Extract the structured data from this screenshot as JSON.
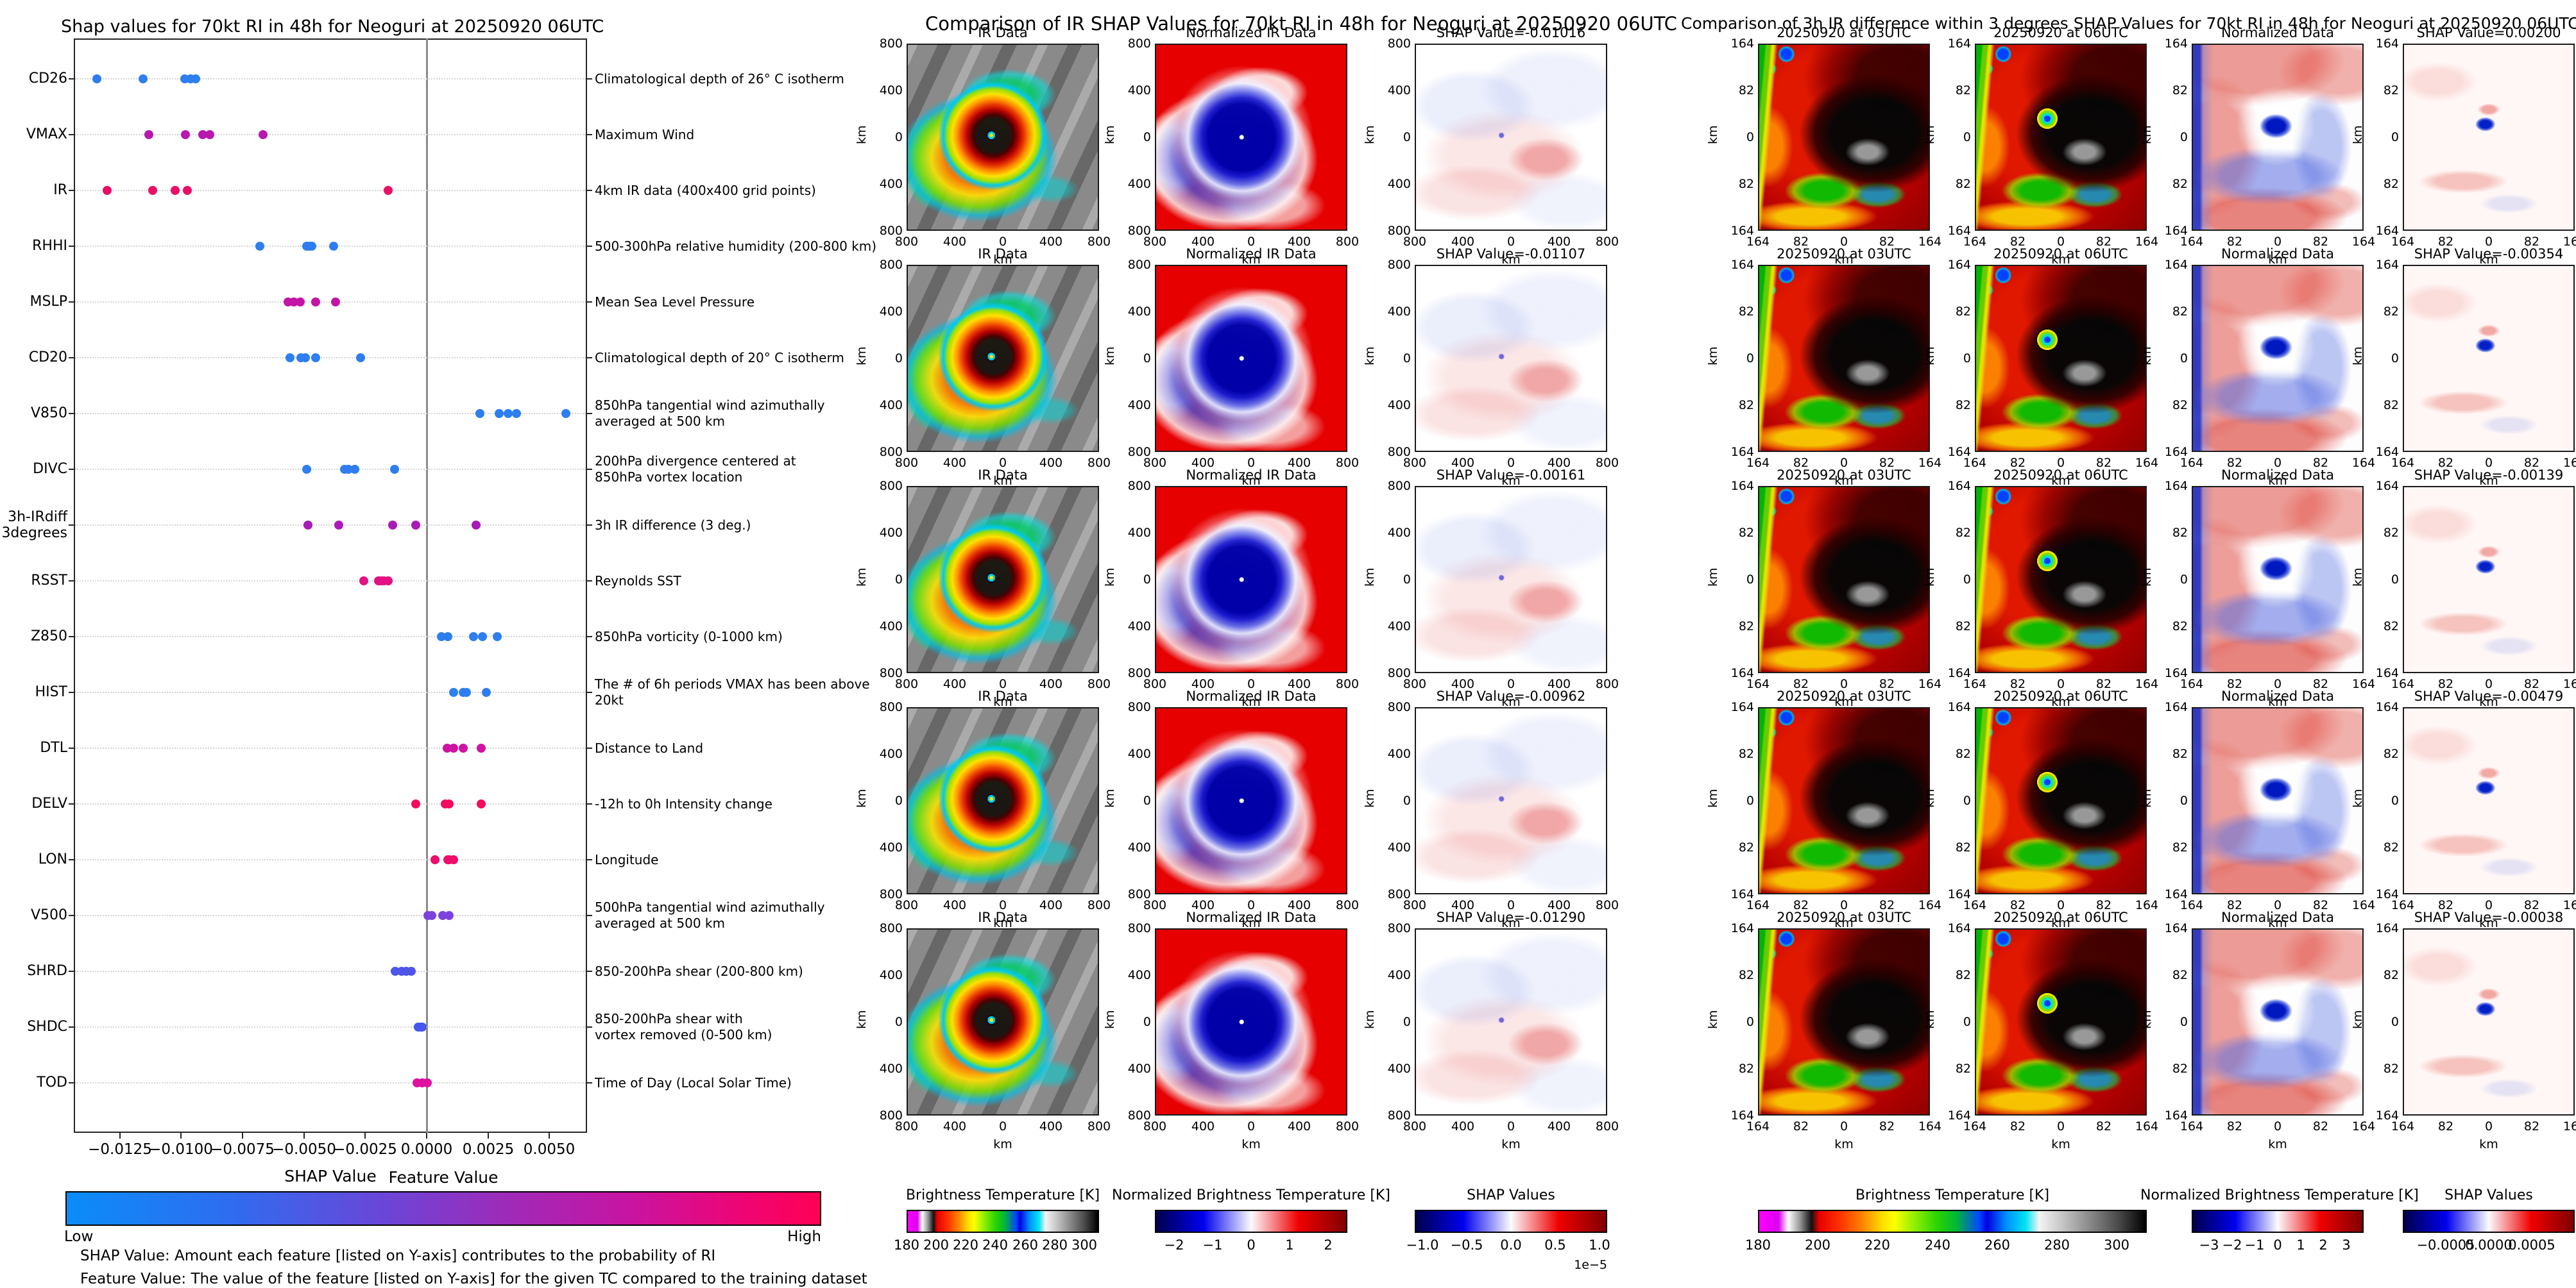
{
  "chart_data": [
    {
      "type": "scatter",
      "title": "Shap values for 70kt RI in 48h for Neoguri at 20250920 06UTC",
      "xlabel": "SHAP Value",
      "xlim": [
        -0.01438,
        0.00654
      ],
      "x_ticks": [
        -0.0125,
        -0.01,
        -0.0075,
        -0.005,
        -0.0025,
        0.0,
        0.0025,
        0.005
      ],
      "x_tick_labels": [
        "−0.0125",
        "−0.0100",
        "−0.0075",
        "−0.0050",
        "−0.0025",
        "0.0000",
        "0.0025",
        "0.0050"
      ],
      "grid": "dotted-horizontal",
      "zero_line": true,
      "colorbar": {
        "title": "Feature Value",
        "low_label": "Low",
        "high_label": "High",
        "low_color": "#0a8df8",
        "high_color": "#ff0154"
      },
      "notes": [
        "SHAP Value: Amount each feature [listed on Y-axis] contributes to the probability of RI",
        "Feature Value: The value of the feature [listed on Y-axis] for the given TC compared to the training dataset"
      ],
      "features": [
        {
          "abbr": "CD26",
          "description": "Climatological depth of 26° C isotherm",
          "dot_color": "#2e7ef0",
          "shap_values": [
            -0.01344,
            -0.01156,
            -0.00985,
            -0.00962,
            -0.00941
          ]
        },
        {
          "abbr": "VMAX",
          "description": "Maximum Wind",
          "dot_color": "#b817b0",
          "shap_values": [
            -0.01132,
            -0.00983,
            -0.00913,
            -0.00884,
            -0.00667
          ]
        },
        {
          "abbr": "IR",
          "description": "4km IR data (400x400 grid points)",
          "dot_color": "#e90f66",
          "shap_values": [
            -0.01302,
            -0.01117,
            -0.01025,
            -0.00975,
            -0.00157
          ]
        },
        {
          "abbr": "RHHI",
          "description": "500-300hPa relative humidity (200-800 km)",
          "dot_color": "#2e7ef0",
          "shap_values": [
            -0.0068,
            -0.00489,
            -0.00479,
            -0.00468,
            -0.00379
          ]
        },
        {
          "abbr": "MSLP",
          "description": "Mean Sea Level Pressure",
          "dot_color": "#c315a6",
          "shap_values": [
            -0.00565,
            -0.00541,
            -0.00515,
            -0.00452,
            -0.00371
          ]
        },
        {
          "abbr": "CD20",
          "description": "Climatological depth of 20° C isotherm",
          "dot_color": "#2e7ef0",
          "shap_values": [
            -0.00557,
            -0.00512,
            -0.00494,
            -0.00452,
            -0.00269
          ]
        },
        {
          "abbr": "V850",
          "description": "850hPa tangential wind azimuthally\naveraged at 500 km",
          "dot_color": "#2e7ef0",
          "shap_values": [
            0.00217,
            0.00295,
            0.00332,
            0.00366,
            0.00567
          ]
        },
        {
          "abbr": "DIVC",
          "description": "200hPa divergence centered at\n850hPa vortex location",
          "dot_color": "#2e7ef0",
          "shap_values": [
            -0.00489,
            -0.00335,
            -0.00319,
            -0.00293,
            -0.00131
          ]
        },
        {
          "abbr": "3h-IRdiff\n3degrees",
          "description": "3h IR difference (3 deg.)",
          "dot_color": "#aa1ab8",
          "shap_values": [
            -0.00484,
            -0.00358,
            -0.00139,
            -0.00044,
            0.00201
          ]
        },
        {
          "abbr": "RSST",
          "description": "Reynolds SST",
          "dot_color": "#e31183",
          "shap_values": [
            -0.00256,
            -0.00196,
            -0.00186,
            -0.00175,
            -0.00157
          ]
        },
        {
          "abbr": "Z850",
          "description": "850hPa vorticity (0-1000 km)",
          "dot_color": "#2e7ef0",
          "shap_values": [
            0.0006,
            0.00086,
            0.00191,
            0.00228,
            0.00288
          ]
        },
        {
          "abbr": "HIST",
          "description": "The # of 6h periods VMAX has been above 20kt",
          "dot_color": "#2e7ef0",
          "shap_values": [
            0.0011,
            0.00149,
            0.00162,
            0.00243
          ]
        },
        {
          "abbr": "DTL",
          "description": "Distance to Land",
          "dot_color": "#d013a2",
          "shap_values": [
            0.00084,
            0.0011,
            0.00149,
            0.00222
          ]
        },
        {
          "abbr": "DELV",
          "description": "-12h to 0h Intensity change",
          "dot_color": "#f30c5e",
          "shap_values": [
            -0.00044,
            0.00076,
            0.00092,
            0.00222
          ]
        },
        {
          "abbr": "LON",
          "description": "Longitude",
          "dot_color": "#ee0d6a",
          "shap_values": [
            0.00034,
            0.00086,
            0.00092,
            0.0011
          ]
        },
        {
          "abbr": "V500",
          "description": "500hPa tangential wind azimuthally\naveraged at 500 km",
          "dot_color": "#7d42dd",
          "shap_values": [
            5e-05,
            0.00021,
            0.00065,
            0.00092
          ]
        },
        {
          "abbr": "SHRD",
          "description": "850-200hPa shear (200-800 km)",
          "dot_color": "#4f55e8",
          "shap_values": [
            -0.00128,
            -0.00102,
            -0.00084,
            -0.00063
          ]
        },
        {
          "abbr": "SHDC",
          "description": "850-200hPa shear with\nvortex removed (0-500 km)",
          "dot_color": "#4456ec",
          "shap_values": [
            -0.00034,
            -0.00024,
            -0.00018
          ]
        },
        {
          "abbr": "TOD",
          "description": "Time of Day (Local Solar Time)",
          "dot_color": "#df11a0",
          "shap_values": [
            -0.00039,
            -0.00018,
            3e-05
          ]
        }
      ]
    },
    {
      "type": "heatmap",
      "title": "Comparison of IR SHAP Values for 70kt RI in 48h for Neoguri at 20250920 06UTC",
      "axis_unit": "km",
      "y_tick_labels": [
        "800",
        "400",
        "0",
        "400",
        "800"
      ],
      "x_tick_labels": [
        "800",
        "400",
        "0",
        "400",
        "800"
      ],
      "rows": [
        {
          "col1": "IR Data",
          "col2": "Normalized IR Data",
          "col3": "SHAP Value=-0.01016",
          "shap_value": -0.01016
        },
        {
          "col1": "IR Data",
          "col2": "Normalized IR Data",
          "col3": "SHAP Value=-0.01107",
          "shap_value": -0.01107
        },
        {
          "col1": "IR Data",
          "col2": "Normalized IR Data",
          "col3": "SHAP Value=-0.00161",
          "shap_value": -0.00161
        },
        {
          "col1": "IR Data",
          "col2": "Normalized IR Data",
          "col3": "SHAP Value=-0.00962",
          "shap_value": -0.00962
        },
        {
          "col1": "IR Data",
          "col2": "Normalized IR Data",
          "col3": "SHAP Value=-0.01290",
          "shap_value": -0.0129
        }
      ],
      "colorbars": [
        {
          "title": "Brightness Temperature [K]",
          "scale": "bt",
          "css": "cb-irbt",
          "ticks": [
            180,
            200,
            220,
            240,
            260,
            280,
            300
          ],
          "tick_labels": [
            "180",
            "200",
            "220",
            "240",
            "260",
            "280",
            "300"
          ]
        },
        {
          "title": "Normalized Brightness Temperature [K]",
          "scale": "pm2",
          "css": "cb-seismic",
          "ticks": [
            -2,
            -1,
            0,
            1,
            2
          ],
          "tick_labels": [
            "−2",
            "−1",
            "0",
            "1",
            "2"
          ]
        },
        {
          "title": "SHAP Values",
          "scale": "shap5",
          "css": "cb-seismic",
          "ticks": [
            -1.0,
            -0.5,
            0.0,
            0.5,
            1.0
          ],
          "tick_labels": [
            "−1.0",
            "−0.5",
            "0.0",
            "0.5",
            "1.0"
          ],
          "offset_text": "1e−5"
        }
      ]
    },
    {
      "type": "heatmap",
      "title": "Comparison of 3h IR difference within 3 degrees SHAP Values for 70kt RI in 48h for Neoguri at 20250920 06UTC",
      "axis_unit": "km",
      "y_tick_labels": [
        "164",
        "82",
        "0",
        "82",
        "164"
      ],
      "x_tick_labels": [
        "164",
        "82",
        "0",
        "82",
        "164"
      ],
      "rows": [
        {
          "col1": "20250920 at 03UTC",
          "col2": "20250920 at 06UTC",
          "col3": "Normalized Data",
          "col4": "SHAP Value=0.00200",
          "shap_value": 0.002
        },
        {
          "col1": "20250920 at 03UTC",
          "col2": "20250920 at 06UTC",
          "col3": "Normalized Data",
          "col4": "SHAP Value=-0.00354",
          "shap_value": -0.00354
        },
        {
          "col1": "20250920 at 03UTC",
          "col2": "20250920 at 06UTC",
          "col3": "Normalized Data",
          "col4": "SHAP Value=-0.00139",
          "shap_value": -0.00139
        },
        {
          "col1": "20250920 at 03UTC",
          "col2": "20250920 at 06UTC",
          "col3": "Normalized Data",
          "col4": "SHAP Value=-0.00479",
          "shap_value": -0.00479
        },
        {
          "col1": "20250920 at 03UTC",
          "col2": "20250920 at 06UTC",
          "col3": "Normalized Data",
          "col4": "SHAP Value=-0.00038",
          "shap_value": -0.00038
        }
      ],
      "colorbars": [
        {
          "title": "Brightness Temperature [K]",
          "scale": "bt",
          "css": "cb-irbt",
          "ticks": [
            180,
            200,
            220,
            240,
            260,
            280,
            300
          ],
          "tick_labels": [
            "180",
            "200",
            "220",
            "240",
            "260",
            "280",
            "300"
          ]
        },
        {
          "title": "Normalized Brightness Temperature [K]",
          "scale": "pm3",
          "css": "cb-seismic",
          "ticks": [
            -3,
            -2,
            -1,
            0,
            1,
            2,
            3
          ],
          "tick_labels": [
            "−3",
            "−2",
            "−1",
            "0",
            "1",
            "2",
            "3"
          ]
        },
        {
          "title": "SHAP Values",
          "scale": "shap05",
          "css": "cb-seismic",
          "ticks": [
            -0.0005,
            0.0,
            0.0005
          ],
          "tick_labels": [
            "−0.0005",
            "0.0000",
            "0.0005"
          ]
        }
      ]
    }
  ]
}
